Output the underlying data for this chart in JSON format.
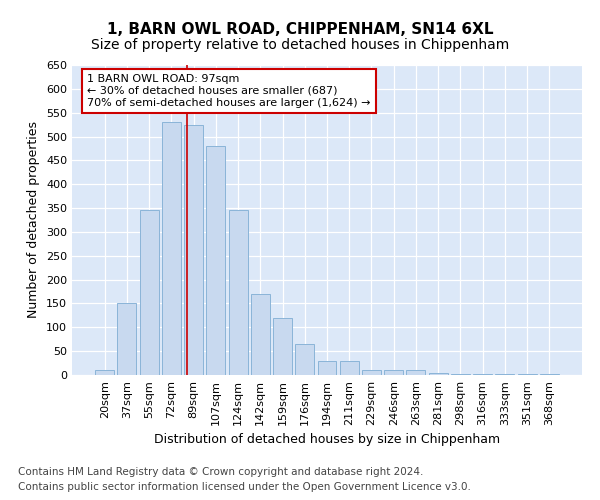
{
  "title1": "1, BARN OWL ROAD, CHIPPENHAM, SN14 6XL",
  "title2": "Size of property relative to detached houses in Chippenham",
  "xlabel": "Distribution of detached houses by size in Chippenham",
  "ylabel": "Number of detached properties",
  "categories": [
    "20sqm",
    "37sqm",
    "55sqm",
    "72sqm",
    "89sqm",
    "107sqm",
    "124sqm",
    "142sqm",
    "159sqm",
    "176sqm",
    "194sqm",
    "211sqm",
    "229sqm",
    "246sqm",
    "263sqm",
    "281sqm",
    "298sqm",
    "316sqm",
    "333sqm",
    "351sqm",
    "368sqm"
  ],
  "values": [
    10,
    150,
    345,
    530,
    525,
    480,
    345,
    170,
    120,
    65,
    30,
    30,
    10,
    10,
    10,
    5,
    2,
    2,
    2,
    2,
    2
  ],
  "bar_color": "#c8d9ef",
  "bar_edge_color": "#8ab4d8",
  "background_color": "#dce8f8",
  "grid_color": "#ffffff",
  "vline_position": 3.7,
  "vline_color": "#cc0000",
  "annotation_text": "1 BARN OWL ROAD: 97sqm\n← 30% of detached houses are smaller (687)\n70% of semi-detached houses are larger (1,624) →",
  "annotation_box_color": "#ffffff",
  "annotation_box_edge": "#cc0000",
  "footer1": "Contains HM Land Registry data © Crown copyright and database right 2024.",
  "footer2": "Contains public sector information licensed under the Open Government Licence v3.0.",
  "ylim": [
    0,
    650
  ],
  "yticks": [
    0,
    50,
    100,
    150,
    200,
    250,
    300,
    350,
    400,
    450,
    500,
    550,
    600,
    650
  ],
  "title1_fontsize": 11,
  "title2_fontsize": 10,
  "axis_label_fontsize": 9,
  "tick_fontsize": 8,
  "annotation_fontsize": 8,
  "footer_fontsize": 7.5
}
